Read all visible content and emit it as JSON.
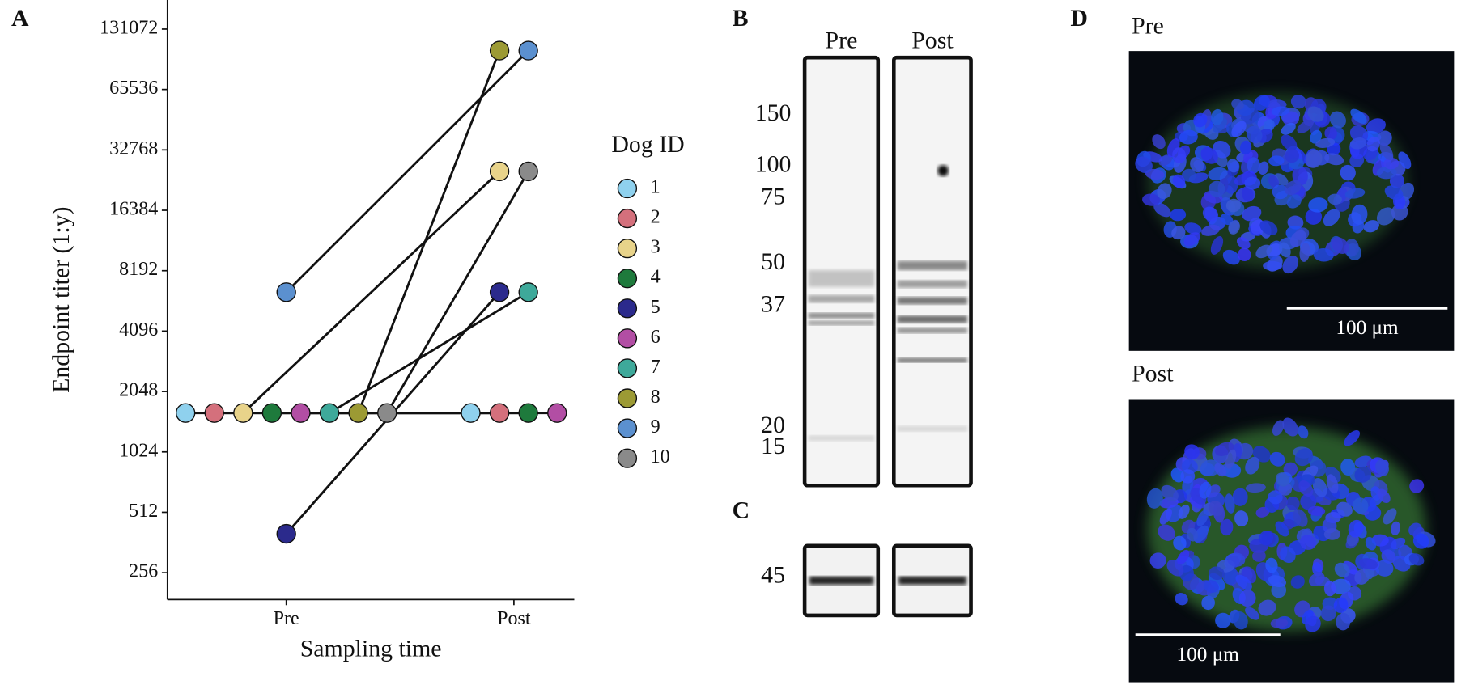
{
  "chart_data": {
    "type": "line",
    "categories": [
      "Pre",
      "Post"
    ],
    "series": [
      {
        "name": "1",
        "color": "#8fd1ee",
        "values": [
          1600,
          1600
        ]
      },
      {
        "name": "2",
        "color": "#d4707c",
        "values": [
          1600,
          1600
        ]
      },
      {
        "name": "3",
        "color": "#e8d38a",
        "values": [
          1600,
          25600
        ]
      },
      {
        "name": "4",
        "color": "#1e7a3c",
        "values": [
          1600,
          1600
        ]
      },
      {
        "name": "5",
        "color": "#2b2a8c",
        "values": [
          400,
          6400
        ]
      },
      {
        "name": "6",
        "color": "#b24ea4",
        "values": [
          1600,
          1600
        ]
      },
      {
        "name": "7",
        "color": "#3ea99a",
        "values": [
          1600,
          6400
        ]
      },
      {
        "name": "8",
        "color": "#9c9a34",
        "values": [
          1600,
          102400
        ]
      },
      {
        "name": "9",
        "color": "#5b90cf",
        "values": [
          6400,
          102400
        ]
      },
      {
        "name": "10",
        "color": "#8a8a8a",
        "values": [
          1600,
          25600
        ]
      }
    ],
    "xlabel": "Sampling time",
    "ylabel": "Endpoint titer (1:y)",
    "legend_title": "Dog ID",
    "legend": "right",
    "log_base": 2,
    "ylim": [
      188,
      183000
    ],
    "yticks": [
      256,
      512,
      1024,
      2048,
      4096,
      8192,
      16384,
      32768,
      65536,
      131072
    ]
  },
  "panels": {
    "labels": [
      "A",
      "B",
      "C",
      "D"
    ],
    "blot_b": {
      "lanes": [
        "Pre",
        "Post"
      ],
      "markers": [
        150,
        100,
        75,
        50,
        37,
        20,
        15
      ]
    },
    "blot_c": {
      "markers": [
        45
      ]
    },
    "images": [
      {
        "label": "Pre",
        "scale_bar": "100 μm"
      },
      {
        "label": "Post",
        "scale_bar": "100 μm"
      }
    ]
  }
}
